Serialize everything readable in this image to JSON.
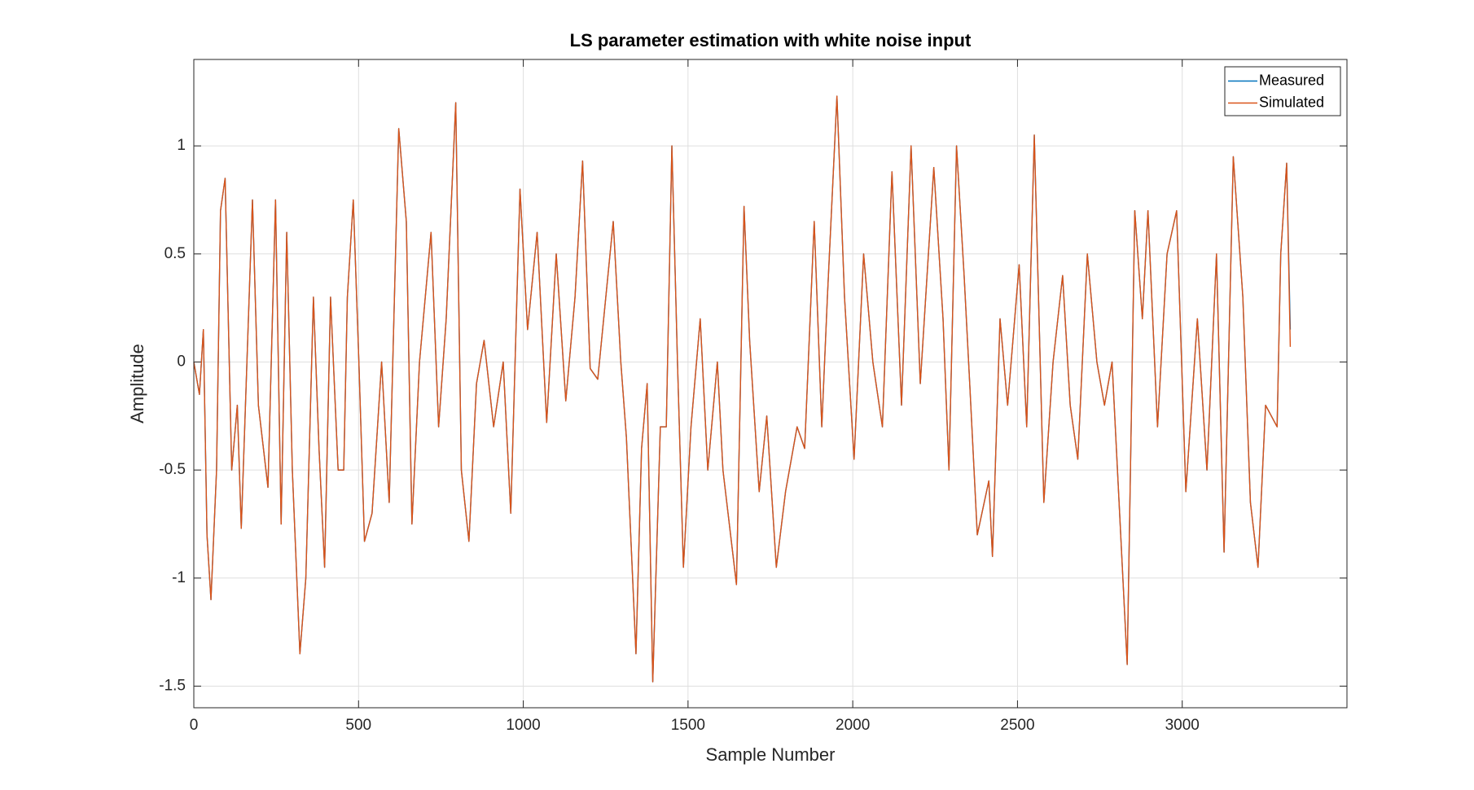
{
  "chart_data": {
    "type": "line",
    "title": "LS parameter estimation with white noise input",
    "x_label": "Sample Number",
    "y_label": "Amplitude",
    "x": [
      0,
      17,
      29,
      40,
      52,
      69,
      81,
      95,
      115,
      132,
      144,
      178,
      196,
      225,
      248,
      265,
      282,
      299,
      322,
      340,
      363,
      380,
      397,
      415,
      438,
      455,
      466,
      484,
      501,
      518,
      541,
      570,
      593,
      622,
      645,
      662,
      685,
      720,
      743,
      766,
      795,
      812,
      835,
      858,
      881,
      910,
      939,
      962,
      990,
      1013,
      1042,
      1071,
      1100,
      1129,
      1157,
      1180,
      1203,
      1226,
      1244,
      1273,
      1296,
      1313,
      1342,
      1359,
      1376,
      1393,
      1416,
      1434,
      1451,
      1468,
      1486,
      1509,
      1537,
      1560,
      1589,
      1606,
      1647,
      1670,
      1687,
      1716,
      1739,
      1768,
      1796,
      1831,
      1854,
      1883,
      1906,
      1923,
      1952,
      1975,
      2004,
      2033,
      2061,
      2090,
      2119,
      2148,
      2177,
      2205,
      2246,
      2274,
      2292,
      2315,
      2338,
      2355,
      2378,
      2413,
      2424,
      2447,
      2470,
      2505,
      2528,
      2551,
      2580,
      2608,
      2637,
      2660,
      2683,
      2712,
      2741,
      2764,
      2787,
      2833,
      2856,
      2879,
      2896,
      2925,
      2954,
      2983,
      3011,
      3046,
      3075,
      3104,
      3127,
      3155,
      3184,
      3207,
      3230,
      3253,
      3288,
      3299,
      3317,
      3328
    ],
    "series": [
      {
        "name": "Measured",
        "color": "#0072BD",
        "values": [
          0,
          -0.15,
          0.15,
          -0.8,
          -1.1,
          -0.5,
          0.7,
          0.85,
          -0.5,
          -0.2,
          -0.77,
          0.75,
          -0.2,
          -0.58,
          0.75,
          -0.75,
          0.6,
          -0.5,
          -1.35,
          -1.0,
          0.3,
          -0.4,
          -0.95,
          0.3,
          -0.5,
          -0.5,
          0.3,
          0.75,
          0.0,
          -0.83,
          -0.7,
          0.0,
          -0.65,
          1.08,
          0.65,
          -0.75,
          0.0,
          0.6,
          -0.3,
          0.2,
          1.2,
          -0.5,
          -0.83,
          -0.1,
          0.1,
          -0.3,
          0.0,
          -0.7,
          0.8,
          0.15,
          0.6,
          -0.28,
          0.5,
          -0.18,
          0.3,
          0.93,
          -0.03,
          -0.08,
          0.2,
          0.65,
          0.0,
          -0.35,
          -1.35,
          -0.4,
          -0.1,
          -1.48,
          -0.3,
          -0.3,
          1.0,
          0.0,
          -0.95,
          -0.3,
          0.2,
          -0.5,
          0.0,
          -0.5,
          -1.03,
          0.72,
          0.1,
          -0.6,
          -0.25,
          -0.95,
          -0.6,
          -0.3,
          -0.4,
          0.65,
          -0.3,
          0.3,
          1.23,
          0.3,
          -0.45,
          0.5,
          0.0,
          -0.3,
          0.88,
          -0.2,
          1.0,
          -0.1,
          0.9,
          0.2,
          -0.5,
          1.0,
          0.4,
          -0.1,
          -0.8,
          -0.55,
          -0.9,
          0.2,
          -0.2,
          0.45,
          -0.3,
          1.05,
          -0.65,
          0.0,
          0.4,
          -0.2,
          -0.45,
          0.5,
          0.0,
          -0.2,
          0.0,
          -1.4,
          0.7,
          0.2,
          0.7,
          -0.3,
          0.5,
          0.7,
          -0.6,
          0.2,
          -0.5,
          0.5,
          -0.88,
          0.95,
          0.3,
          -0.65,
          -0.95,
          -0.2,
          -0.3,
          0.5,
          0.92,
          0.15
        ]
      },
      {
        "name": "Simulated",
        "color": "#D95319",
        "values": [
          0,
          -0.15,
          0.15,
          -0.8,
          -1.1,
          -0.5,
          0.7,
          0.85,
          -0.5,
          -0.2,
          -0.77,
          0.75,
          -0.2,
          -0.58,
          0.75,
          -0.75,
          0.6,
          -0.5,
          -1.35,
          -1.0,
          0.3,
          -0.4,
          -0.95,
          0.3,
          -0.5,
          -0.5,
          0.3,
          0.75,
          0.0,
          -0.83,
          -0.7,
          0.0,
          -0.65,
          1.08,
          0.65,
          -0.75,
          0.0,
          0.6,
          -0.3,
          0.2,
          1.2,
          -0.5,
          -0.83,
          -0.1,
          0.1,
          -0.3,
          0.0,
          -0.7,
          0.8,
          0.15,
          0.6,
          -0.28,
          0.5,
          -0.18,
          0.3,
          0.93,
          -0.03,
          -0.08,
          0.2,
          0.65,
          0.0,
          -0.35,
          -1.35,
          -0.4,
          -0.1,
          -1.48,
          -0.3,
          -0.3,
          1.0,
          0.0,
          -0.95,
          -0.3,
          0.2,
          -0.5,
          0.0,
          -0.5,
          -1.03,
          0.72,
          0.1,
          -0.6,
          -0.25,
          -0.95,
          -0.6,
          -0.3,
          -0.4,
          0.65,
          -0.3,
          0.3,
          1.23,
          0.3,
          -0.45,
          0.5,
          0.0,
          -0.3,
          0.88,
          -0.2,
          1.0,
          -0.1,
          0.9,
          0.2,
          -0.5,
          1.0,
          0.4,
          -0.1,
          -0.8,
          -0.55,
          -0.9,
          0.2,
          -0.2,
          0.45,
          -0.3,
          1.05,
          -0.65,
          0.0,
          0.4,
          -0.2,
          -0.45,
          0.5,
          0.0,
          -0.2,
          0.0,
          -1.4,
          0.7,
          0.2,
          0.7,
          -0.3,
          0.5,
          0.7,
          -0.6,
          0.2,
          -0.5,
          0.5,
          -0.88,
          0.95,
          0.3,
          -0.65,
          -0.95,
          -0.2,
          -0.3,
          0.5,
          0.92,
          0.07
        ]
      }
    ],
    "xlim": [
      0,
      3500
    ],
    "xticks": [
      0,
      500,
      1000,
      1500,
      2000,
      2500,
      3000
    ],
    "ylim": [
      -1.6,
      1.4
    ],
    "yticks": [
      -1.5,
      -1,
      -0.5,
      0,
      0.5,
      1
    ],
    "grid": true,
    "legend": "northeast"
  }
}
